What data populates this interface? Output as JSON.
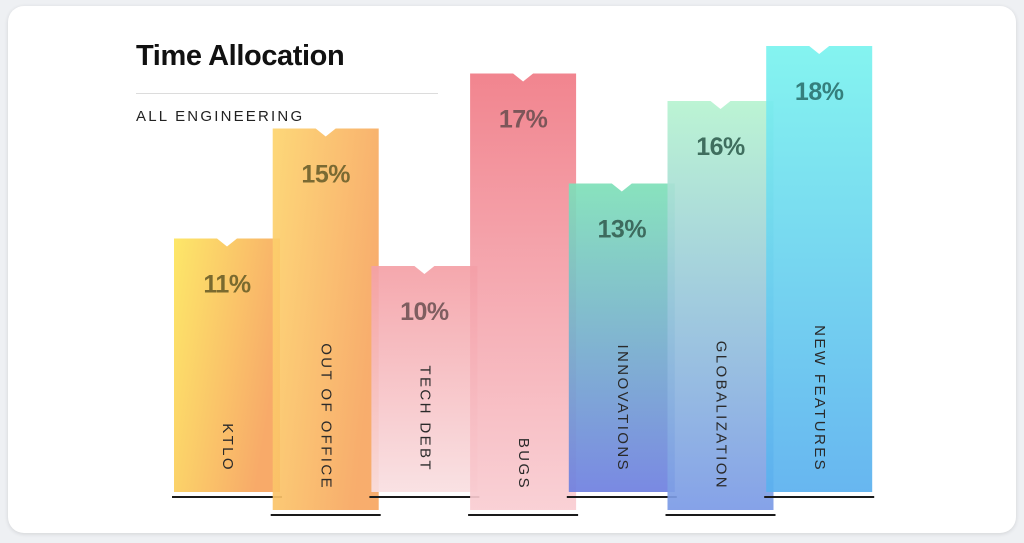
{
  "title": "Time Allocation",
  "subtitle": "ALL ENGINEERING",
  "chart_data": {
    "type": "bar",
    "title": "Time Allocation",
    "subtitle": "ALL ENGINEERING",
    "categories": [
      "KTLO",
      "OUT OF OFFICE",
      "TECH DEBT",
      "BUGS",
      "INNOVATIONS",
      "GLOBALIZATION",
      "NEW FEATURES"
    ],
    "values": [
      11,
      15,
      10,
      17,
      13,
      16,
      18
    ],
    "labels": [
      "11%",
      "15%",
      "10%",
      "17%",
      "13%",
      "16%",
      "18%"
    ],
    "unit": "%",
    "grid": false,
    "legend": "none",
    "colors": [
      {
        "top": "#fde55c",
        "bottom": "#f7a35c",
        "text": "#7a6a2f"
      },
      {
        "top": "#fdd46d",
        "bottom": "#f7a660",
        "text": "#7a6a33"
      },
      {
        "top": "#f4a0a6",
        "bottom": "#f9dfe1",
        "text": "#7f5e60"
      },
      {
        "top": "#f07a85",
        "bottom": "#f9cdd2",
        "text": "#7c5659"
      },
      {
        "top": "#7ee0b8",
        "bottom": "#6e7fe0",
        "text": "#3d6b5e"
      },
      {
        "top": "#b6f3d0",
        "bottom": "#7b9ae6",
        "text": "#3f6e5e"
      },
      {
        "top": "#7af3ef",
        "bottom": "#5ab0ef",
        "text": "#357f7d"
      }
    ]
  }
}
